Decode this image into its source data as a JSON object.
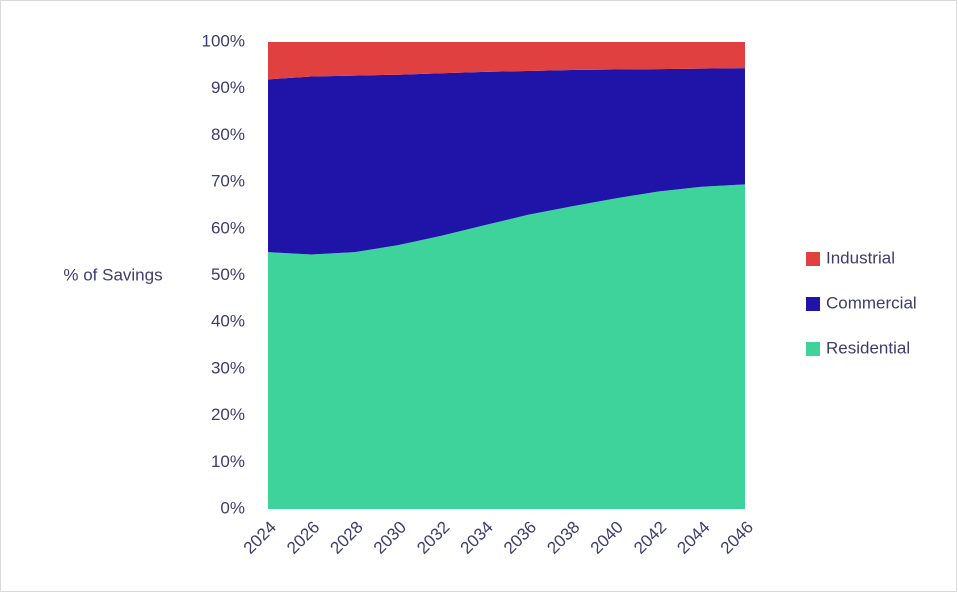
{
  "chart_data": {
    "type": "stacked_area_100",
    "y_axis_label": "% of Savings",
    "categories": [
      "2024",
      "2026",
      "2028",
      "2030",
      "2032",
      "2034",
      "2036",
      "2038",
      "2040",
      "2042",
      "2044",
      "2046"
    ],
    "series": [
      {
        "name": "Residential",
        "color": "#3dd39b",
        "values": [
          55,
          54.5,
          55,
          56.5,
          58.5,
          60.8,
          63,
          64.8,
          66.5,
          68,
          69,
          69.5
        ]
      },
      {
        "name": "Commercial",
        "color": "#2014a8",
        "values": [
          37,
          38.1,
          37.8,
          36.5,
          34.8,
          32.8,
          30.8,
          29.2,
          27.6,
          26.2,
          25.3,
          24.9
        ]
      },
      {
        "name": "Industrial",
        "color": "#e04040",
        "values": [
          8,
          7.4,
          7.2,
          7,
          6.7,
          6.4,
          6.2,
          6,
          5.9,
          5.8,
          5.7,
          5.6
        ]
      }
    ],
    "ylim": [
      0,
      100
    ],
    "yticks": [
      {
        "value": 0,
        "label": "0%"
      },
      {
        "value": 10,
        "label": "10%"
      },
      {
        "value": 20,
        "label": "20%"
      },
      {
        "value": 30,
        "label": "30%"
      },
      {
        "value": 40,
        "label": "40%"
      },
      {
        "value": 50,
        "label": "50%"
      },
      {
        "value": 60,
        "label": "60%"
      },
      {
        "value": 70,
        "label": "70%"
      },
      {
        "value": 80,
        "label": "80%"
      },
      {
        "value": 90,
        "label": "90%"
      },
      {
        "value": 100,
        "label": "100%"
      }
    ],
    "legend": "right"
  }
}
